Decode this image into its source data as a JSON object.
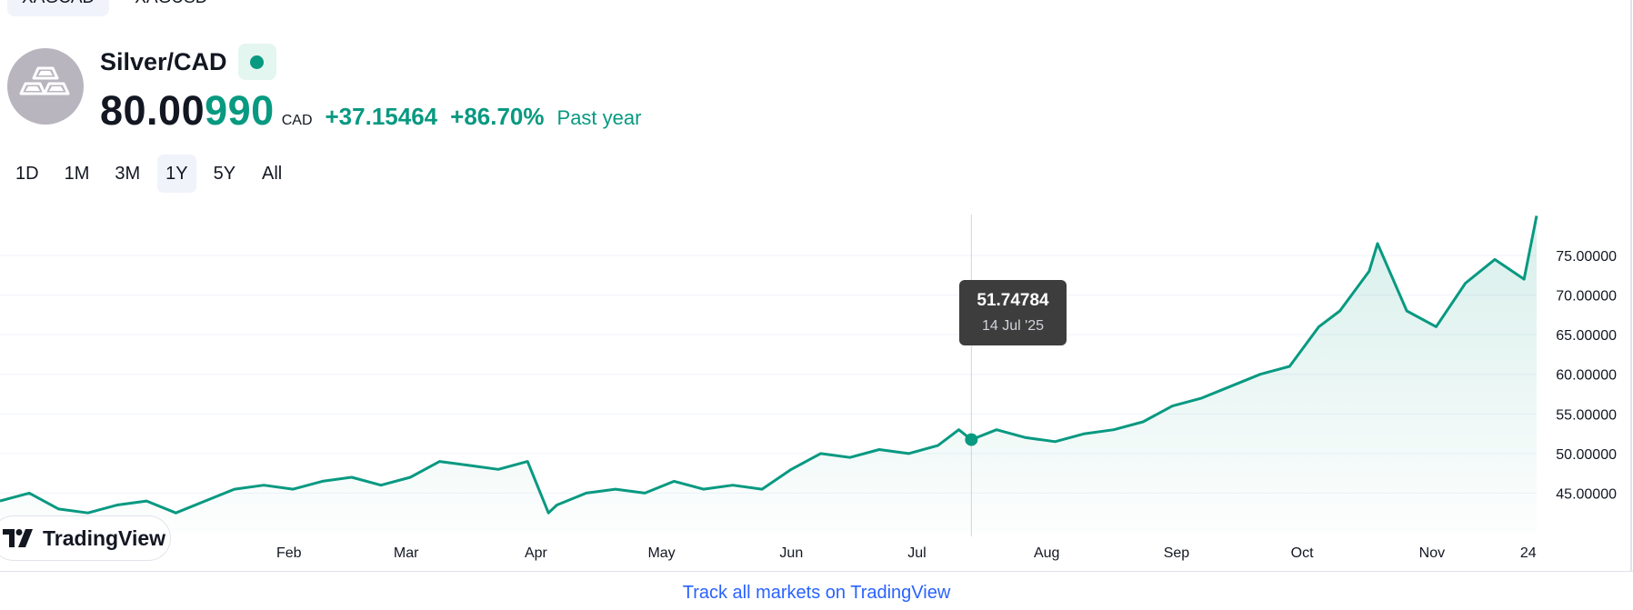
{
  "symbol_tabs": [
    {
      "label": "XAGCAD",
      "active": true
    },
    {
      "label": "XAGUSD",
      "active": false
    }
  ],
  "header": {
    "logo_icon": "silver-bars-icon",
    "name": "Silver/CAD",
    "status_icon": "market-open-dot-icon",
    "price_main": "80.00",
    "price_tail": "990",
    "currency": "CAD",
    "change_abs": "+37.15464",
    "change_pct": "+86.70%",
    "change_period": "Past year"
  },
  "range_tabs": [
    {
      "label": "1D",
      "active": false
    },
    {
      "label": "1M",
      "active": false
    },
    {
      "label": "3M",
      "active": false
    },
    {
      "label": "1Y",
      "active": true
    },
    {
      "label": "5Y",
      "active": false
    },
    {
      "label": "All",
      "active": false
    }
  ],
  "colors": {
    "up": "#089981",
    "text": "#131722",
    "link": "#2962ff",
    "tooltip_bg": "#3d3d3d"
  },
  "chart_data": {
    "type": "area",
    "x_ticks": [
      "Feb",
      "Mar",
      "Apr",
      "May",
      "Jun",
      "Jul",
      "Aug",
      "Sep",
      "Oct",
      "Nov",
      "24"
    ],
    "y_ticks": [
      "45.00000",
      "50.00000",
      "55.00000",
      "60.00000",
      "65.00000",
      "70.00000",
      "75.00000"
    ],
    "ylim": [
      40,
      82
    ],
    "x_start": "2024-11-24",
    "x_end": "2025-11-26",
    "x": [
      "2024-11-24",
      "2024-12-01",
      "2024-12-08",
      "2024-12-15",
      "2024-12-22",
      "2024-12-29",
      "2025-01-05",
      "2025-01-12",
      "2025-01-19",
      "2025-01-26",
      "2025-02-02",
      "2025-02-09",
      "2025-02-16",
      "2025-02-23",
      "2025-03-02",
      "2025-03-09",
      "2025-03-16",
      "2025-03-23",
      "2025-03-30",
      "2025-04-04",
      "2025-04-06",
      "2025-04-13",
      "2025-04-20",
      "2025-04-27",
      "2025-05-04",
      "2025-05-11",
      "2025-05-18",
      "2025-05-25",
      "2025-06-01",
      "2025-06-08",
      "2025-06-15",
      "2025-06-22",
      "2025-06-29",
      "2025-07-06",
      "2025-07-11",
      "2025-07-14",
      "2025-07-20",
      "2025-07-27",
      "2025-08-03",
      "2025-08-10",
      "2025-08-17",
      "2025-08-24",
      "2025-08-31",
      "2025-09-07",
      "2025-09-14",
      "2025-09-21",
      "2025-09-28",
      "2025-10-05",
      "2025-10-10",
      "2025-10-17",
      "2025-10-19",
      "2025-10-26",
      "2025-11-02",
      "2025-11-09",
      "2025-11-16",
      "2025-11-23",
      "2025-11-26"
    ],
    "series": [
      {
        "values": [
          44.0,
          45.0,
          43.0,
          42.5,
          43.5,
          44.0,
          42.5,
          44.0,
          45.5,
          46.0,
          45.5,
          46.5,
          47.0,
          46.0,
          47.0,
          49.0,
          48.5,
          48.0,
          49.0,
          42.5,
          43.5,
          45.0,
          45.5,
          45.0,
          46.5,
          45.5,
          46.0,
          45.5,
          48.0,
          50.0,
          49.5,
          50.5,
          50.0,
          51.0,
          53.0,
          51.75,
          53.0,
          52.0,
          51.5,
          52.5,
          53.0,
          54.0,
          56.0,
          57.0,
          58.5,
          60.0,
          61.0,
          66.0,
          68.0,
          73.0,
          76.5,
          68.0,
          66.0,
          71.5,
          74.5,
          72.0,
          80.0
        ]
      }
    ],
    "hover": {
      "date_label": "14 Jul '25",
      "value_label": "51.74784",
      "x": "2025-07-14",
      "y": 51.75
    }
  },
  "branding": {
    "logo_text": "TradingView",
    "logo_icon": "tradingview-logo-icon"
  },
  "footer": {
    "link_text": "Track all markets on TradingView"
  }
}
